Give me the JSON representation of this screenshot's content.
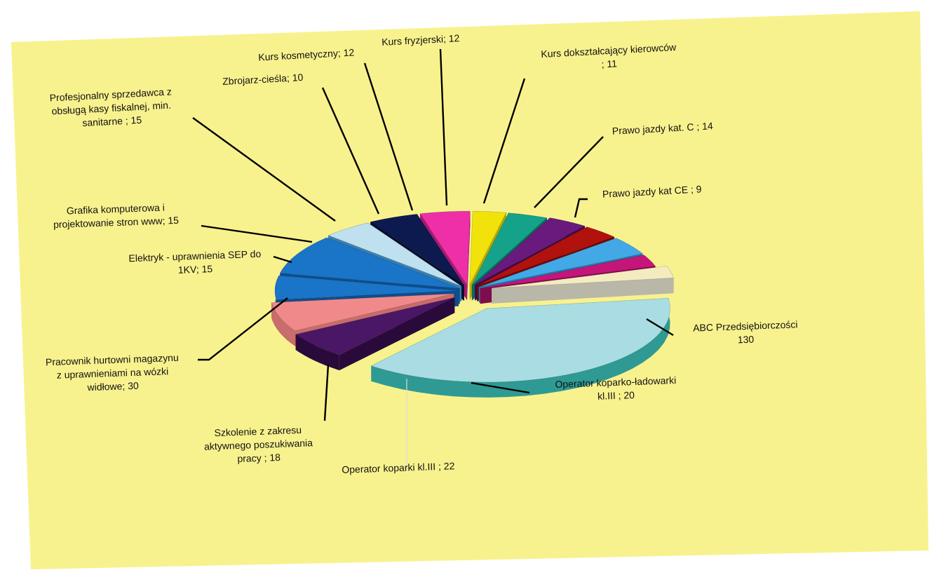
{
  "chart_data": {
    "type": "pie",
    "style": "3d-exploded",
    "title": "",
    "background_color": "#f8f28e",
    "slices": [
      {
        "label": "ABC Przedsiębiorczości 130",
        "value": 130,
        "color": "#a9dde3",
        "side_color": "#2f9a93"
      },
      {
        "label": "Operator koparko-ładowarki kl.III ; 20",
        "value": 20,
        "color": "#4a1766",
        "side_color": "#2a0a3a"
      },
      {
        "label": "Operator koparki kl.III ; 22",
        "value": 22,
        "color": "#f08a8a",
        "side_color": "#c86c6c"
      },
      {
        "label": "Szkolenie z zakresu aktywnego poszukiwania pracy ; 18",
        "value": 18,
        "color": "#1a74c8",
        "side_color": "#0f4d8c"
      },
      {
        "label": "Pracownik hurtowni magazynu z uprawnieniami na wózki widłowe; 30",
        "value": 30,
        "color": "#1a74c8",
        "side_color": "#0f4d8c"
      },
      {
        "label": "Elektryk - uprawnienia SEP do 1KV; 15",
        "value": 15,
        "color": "#bfe0ef",
        "side_color": "#3a7fb0"
      },
      {
        "label": "Grafika komputerowa i projektowanie stron www; 15",
        "value": 15,
        "color": "#0c1a4f",
        "side_color": "#060d2a"
      },
      {
        "label": "Profesjonalny sprzedawca z obsługą kasy fiskalnej, min. sanitarne ; 15",
        "value": 15,
        "color": "#ef2fa8",
        "side_color": "#a51a72"
      },
      {
        "label": "Zbrojarz-cieśla; 10",
        "value": 10,
        "color": "#f2e20c",
        "side_color": "#b7a800"
      },
      {
        "label": "Kurs kosmetyczny; 12",
        "value": 12,
        "color": "#14a38a",
        "side_color": "#0a6a5a"
      },
      {
        "label": "Kurs fryzjerski; 12",
        "value": 12,
        "color": "#6a1a7d",
        "side_color": "#3f0a4c"
      },
      {
        "label": "Kurs dokształcający kierowców ; 11",
        "value": 11,
        "color": "#b1120e",
        "side_color": "#6e0808"
      },
      {
        "label": "Prawo jazdy kat. C ; 14",
        "value": 14,
        "color": "#42a9e6",
        "side_color": "#2477ad"
      },
      {
        "label": "Prawo jazdy kat CE ; 9",
        "value": 9,
        "color": "#c6157a",
        "side_color": "#7f0c4d"
      },
      {
        "label": "",
        "value": 9,
        "color": "#f4ebbf",
        "side_color": "#b9b7a8"
      }
    ],
    "labels": [
      {
        "lines": [
          "ABC Przedsiębiorczości",
          "130"
        ]
      },
      {
        "lines": [
          "Operator koparko-ładowarki",
          "kl.III ; 20"
        ]
      },
      {
        "lines": [
          "Operator koparki kl.III ; 22"
        ]
      },
      {
        "lines": [
          "Szkolenie z zakresu",
          "aktywnego poszukiwania",
          "pracy ; 18"
        ]
      },
      {
        "lines": [
          "Pracownik hurtowni magazynu",
          "z uprawnieniami na wózki",
          "widłowe; 30"
        ]
      },
      {
        "lines": [
          "Elektryk - uprawnienia SEP do",
          "1KV; 15"
        ]
      },
      {
        "lines": [
          "Grafika komputerowa i",
          "projektowanie stron www; 15"
        ]
      },
      {
        "lines": [
          "Profesjonalny sprzedawca z",
          "obsługą kasy fiskalnej, min.",
          "sanitarne ; 15"
        ]
      },
      {
        "lines": [
          "Zbrojarz-cieśla; 10"
        ]
      },
      {
        "lines": [
          "Kurs kosmetyczny; 12"
        ]
      },
      {
        "lines": [
          "Kurs fryzjerski; 12"
        ]
      },
      {
        "lines": [
          "Kurs dokształcający kierowców",
          "; 11"
        ]
      },
      {
        "lines": [
          "Prawo jazdy kat. C ; 14"
        ]
      },
      {
        "lines": [
          "Prawo jazdy kat CE ; 9"
        ]
      }
    ],
    "legend": "none"
  }
}
